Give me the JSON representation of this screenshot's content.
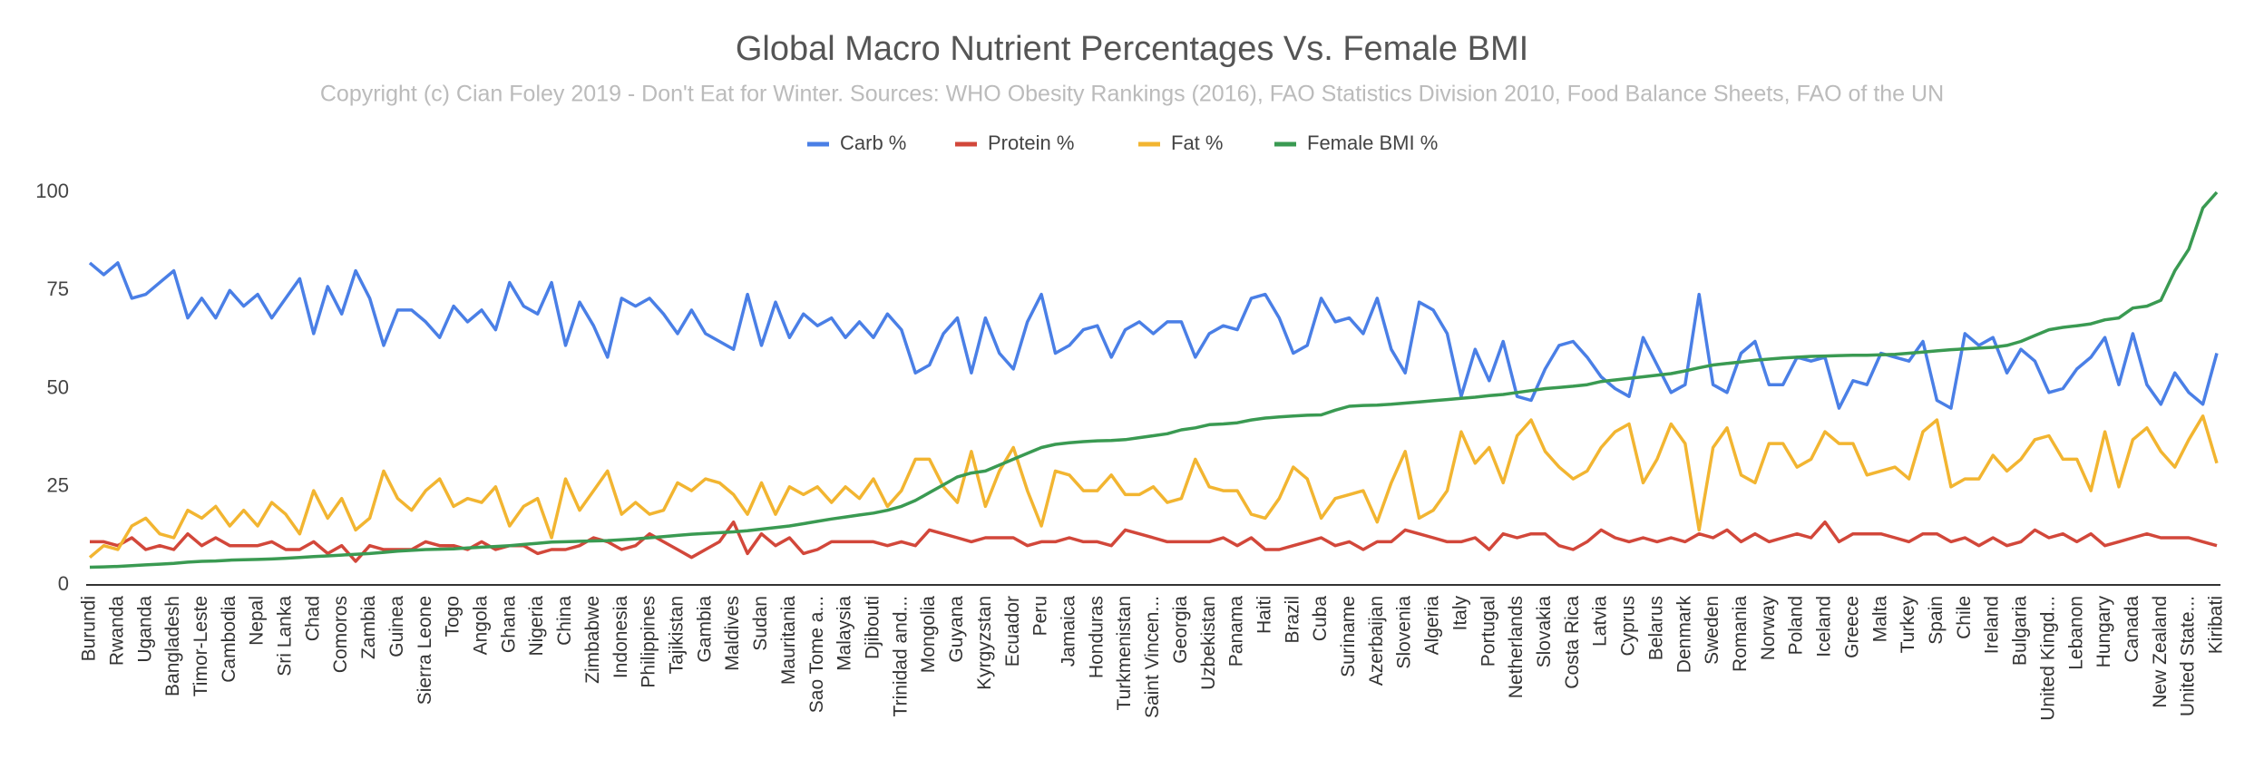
{
  "chart_data": {
    "type": "line",
    "title": "Global Macro Nutrient Percentages Vs. Female BMI",
    "subtitle": "Copyright (c) Cian Foley 2019 - Don't Eat for Winter. Sources: WHO Obesity Rankings (2016), FAO Statistics Division 2010, Food Balance Sheets, FAO of the UN",
    "categories": [
      "Burundi",
      null,
      "Rwanda",
      null,
      "Uganda",
      null,
      "Bangladesh",
      null,
      "Timor-Leste",
      null,
      "Cambodia",
      null,
      "Nepal",
      null,
      "Sri Lanka",
      null,
      "Chad",
      null,
      "Comoros",
      null,
      "Zambia",
      null,
      "Guinea",
      null,
      "Sierra Leone",
      null,
      "Togo",
      null,
      "Angola",
      null,
      "Ghana",
      null,
      "Nigeria",
      null,
      "China",
      null,
      "Zimbabwe",
      null,
      "Indonesia",
      null,
      "Philippines",
      null,
      "Tajikistan",
      null,
      "Gambia",
      null,
      "Maldives",
      null,
      "Sudan",
      null,
      "Mauritania",
      null,
      "Sao Tome a...",
      null,
      "Malaysia",
      null,
      "Djibouti",
      null,
      "Trinidad and...",
      null,
      "Mongolia",
      null,
      "Guyana",
      null,
      "Kyrgyzstan",
      null,
      "Ecuador",
      null,
      "Peru",
      null,
      "Jamaica",
      null,
      "Honduras",
      null,
      "Turkmenistan",
      null,
      "Saint Vincen...",
      null,
      "Georgia",
      null,
      "Uzbekistan",
      null,
      "Panama",
      null,
      "Haiti",
      null,
      "Brazil",
      null,
      "Cuba",
      null,
      "Suriname",
      null,
      "Azerbaijan",
      null,
      "Slovenia",
      null,
      "Algeria",
      null,
      "Italy",
      null,
      "Portugal",
      null,
      "Netherlands",
      null,
      "Slovakia",
      null,
      "Costa Rica",
      null,
      "Latvia",
      null,
      "Cyprus",
      null,
      "Belarus",
      null,
      "Denmark",
      null,
      "Sweden",
      null,
      "Romania",
      null,
      "Norway",
      null,
      "Poland",
      null,
      "Iceland",
      null,
      "Greece",
      null,
      "Malta",
      null,
      "Turkey",
      null,
      "Spain",
      null,
      "Chile",
      null,
      "Ireland",
      null,
      "Bulgaria",
      null,
      "United Kingd...",
      null,
      "Lebanon",
      null,
      "Hungary",
      null,
      "Canada",
      null,
      "New Zealand",
      null,
      "United State...",
      null,
      "Kiribati"
    ],
    "series": [
      {
        "name": "Carb %",
        "color": "#4a7fe6",
        "values": [
          82,
          79,
          82,
          73,
          74,
          77,
          80,
          68,
          73,
          68,
          75,
          71,
          74,
          68,
          73,
          78,
          64,
          76,
          69,
          80,
          73,
          61,
          70,
          70,
          67,
          63,
          71,
          67,
          70,
          65,
          77,
          71,
          69,
          77,
          61,
          72,
          66,
          58,
          73,
          71,
          73,
          69,
          64,
          70,
          64,
          62,
          60,
          74,
          61,
          72,
          63,
          69,
          66,
          68,
          63,
          67,
          63,
          69,
          65,
          54,
          56,
          64,
          68,
          54,
          68,
          59,
          55,
          67,
          74,
          59,
          61,
          65,
          66,
          58,
          65,
          67,
          64,
          67,
          67,
          58,
          64,
          66,
          65,
          73,
          74,
          68,
          59,
          61,
          73,
          67,
          68,
          64,
          73,
          60,
          54,
          72,
          70,
          64,
          48,
          60,
          52,
          62,
          48,
          47,
          55,
          61,
          62,
          58,
          53,
          50,
          48,
          63,
          56,
          49,
          51,
          74,
          51,
          49,
          59,
          62,
          51,
          51,
          58,
          57,
          58,
          45,
          52,
          51,
          59,
          58,
          57,
          62,
          47,
          45,
          64,
          61,
          63,
          54,
          60,
          57,
          49,
          50,
          55,
          58,
          63,
          51,
          64,
          51,
          46,
          54,
          49,
          46,
          59
        ]
      },
      {
        "name": "Protein %",
        "color": "#d2473a",
        "values": [
          11,
          11,
          10,
          12,
          9,
          10,
          9,
          13,
          10,
          12,
          10,
          10,
          10,
          11,
          9,
          9,
          11,
          8,
          10,
          6,
          10,
          9,
          9,
          9,
          11,
          10,
          10,
          9,
          11,
          9,
          10,
          10,
          8,
          9,
          9,
          10,
          12,
          11,
          9,
          10,
          13,
          11,
          9,
          7,
          9,
          11,
          16,
          8,
          13,
          10,
          12,
          8,
          9,
          11,
          11,
          11,
          11,
          10,
          11,
          10,
          14,
          13,
          12,
          11,
          12,
          12,
          12,
          10,
          11,
          11,
          12,
          11,
          11,
          10,
          14,
          13,
          12,
          11,
          11,
          11,
          11,
          12,
          10,
          12,
          9,
          9,
          10,
          11,
          12,
          10,
          11,
          9,
          11,
          11,
          14,
          13,
          12,
          11,
          11,
          12,
          9,
          13,
          12,
          13,
          13,
          10,
          9,
          11,
          14,
          12,
          11,
          12,
          11,
          12,
          11,
          13,
          12,
          14,
          11,
          13,
          11,
          12,
          13,
          12,
          16,
          11,
          13,
          13,
          13,
          12,
          11,
          13,
          13,
          11,
          12,
          10,
          12,
          10,
          11,
          14,
          12,
          13,
          11,
          13,
          10,
          11,
          12,
          13,
          12,
          12,
          12,
          11,
          10
        ]
      },
      {
        "name": "Fat %",
        "color": "#f2b531",
        "values": [
          7,
          10,
          9,
          15,
          17,
          13,
          12,
          19,
          17,
          20,
          15,
          19,
          15,
          21,
          18,
          13,
          24,
          17,
          22,
          14,
          17,
          29,
          22,
          19,
          24,
          27,
          20,
          22,
          21,
          25,
          15,
          20,
          22,
          12,
          27,
          19,
          24,
          29,
          18,
          21,
          18,
          19,
          26,
          24,
          27,
          26,
          23,
          18,
          26,
          18,
          25,
          23,
          25,
          21,
          25,
          22,
          27,
          20,
          24,
          32,
          32,
          25,
          21,
          34,
          20,
          29,
          35,
          24,
          15,
          29,
          28,
          24,
          24,
          28,
          23,
          23,
          25,
          21,
          22,
          32,
          25,
          24,
          24,
          18,
          17,
          22,
          30,
          27,
          17,
          22,
          23,
          24,
          16,
          26,
          34,
          17,
          19,
          24,
          39,
          31,
          35,
          26,
          38,
          42,
          34,
          30,
          27,
          29,
          35,
          39,
          41,
          26,
          32,
          41,
          36,
          14,
          35,
          40,
          28,
          26,
          36,
          36,
          30,
          32,
          39,
          36,
          36,
          28,
          29,
          30,
          27,
          39,
          42,
          25,
          27,
          27,
          33,
          29,
          32,
          37,
          38,
          32,
          32,
          24,
          39,
          25,
          37,
          40,
          34,
          30,
          37,
          43,
          31
        ]
      },
      {
        "name": "Female BMI %",
        "color": "#3a9a52",
        "values": [
          4.5,
          4.6,
          4.7,
          4.9,
          5.1,
          5.3,
          5.5,
          5.8,
          6.0,
          6.1,
          6.3,
          6.4,
          6.5,
          6.6,
          6.8,
          7.0,
          7.2,
          7.4,
          7.6,
          7.8,
          8.0,
          8.3,
          8.6,
          8.8,
          9.0,
          9.1,
          9.2,
          9.4,
          9.6,
          9.8,
          10.0,
          10.3,
          10.6,
          10.9,
          11.0,
          11.1,
          11.2,
          11.3,
          11.5,
          11.7,
          12.0,
          12.3,
          12.6,
          12.9,
          13.1,
          13.3,
          13.5,
          13.8,
          14.2,
          14.6,
          15.0,
          15.6,
          16.2,
          16.8,
          17.3,
          17.8,
          18.3,
          19.0,
          20.0,
          21.5,
          23.5,
          25.5,
          27.5,
          28.5,
          29.0,
          30.5,
          32.0,
          33.5,
          35.0,
          35.8,
          36.2,
          36.5,
          36.7,
          36.8,
          37.0,
          37.5,
          38.0,
          38.5,
          39.5,
          40.0,
          40.8,
          41.0,
          41.3,
          42.0,
          42.5,
          42.8,
          43.0,
          43.2,
          43.3,
          44.5,
          45.5,
          45.7,
          45.8,
          46.0,
          46.3,
          46.6,
          46.9,
          47.2,
          47.5,
          47.8,
          48.2,
          48.5,
          49.0,
          49.5,
          50.0,
          50.3,
          50.6,
          51.0,
          51.8,
          52.2,
          52.6,
          53.0,
          53.4,
          53.8,
          54.5,
          55.3,
          56.0,
          56.4,
          56.8,
          57.2,
          57.5,
          57.8,
          58.0,
          58.2,
          58.3,
          58.4,
          58.5,
          58.5,
          58.6,
          58.7,
          59.0,
          59.3,
          59.6,
          59.9,
          60.1,
          60.3,
          60.5,
          61.0,
          62.0,
          63.5,
          65.0,
          65.6,
          66.0,
          66.5,
          67.5,
          68.0,
          70.5,
          71.0,
          72.5,
          80.0,
          85.5,
          96.0,
          100
        ]
      }
    ],
    "ylim": [
      0,
      100
    ],
    "yticks": [
      0,
      25,
      50,
      75,
      100
    ],
    "grid": false,
    "legend": "top"
  }
}
